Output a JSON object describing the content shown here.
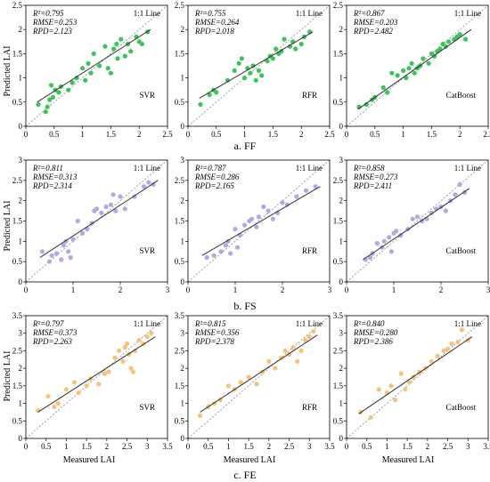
{
  "figure": {
    "rows": [
      {
        "caption": "a. FF",
        "ylabel": "Predicted LAI",
        "xlabel": ""
      },
      {
        "caption": "b. FS",
        "ylabel": "Predicted LAI",
        "xlabel": ""
      },
      {
        "caption": "c. FE",
        "ylabel": "Predicted LAI",
        "xlabel": "Measured LAI"
      }
    ],
    "colors": {
      "FF": "#3cc35a",
      "FS": "#b5a7e6",
      "FE": "#f7c27e",
      "fit": "#333333",
      "oneone": "#888888"
    }
  },
  "chart_data": [
    {
      "type": "scatter",
      "row": "FF",
      "model": "SVR",
      "legend": "1:1 Line",
      "stats": [
        "R²=0.795",
        "RMSE=0.253",
        "RPD=2.123"
      ],
      "xlim": [
        0,
        2.5
      ],
      "ylim": [
        0,
        2.5
      ],
      "xticks": [
        0,
        0.5,
        1,
        1.5,
        2,
        2.5
      ],
      "yticks": [
        0,
        0.5,
        1,
        1.5,
        2,
        2.5
      ],
      "xtick_labels": [
        "0",
        "0.5",
        "1",
        "1.5",
        "2",
        "2.5"
      ],
      "ytick_labels": [
        "0",
        "0.5",
        "1",
        "1.5",
        "2",
        "2.5"
      ],
      "fit": [
        [
          0.2,
          0.5
        ],
        [
          2.2,
          2.0
        ]
      ],
      "x": [
        0.22,
        0.35,
        0.38,
        0.42,
        0.45,
        0.48,
        0.52,
        0.58,
        0.62,
        0.75,
        0.82,
        0.9,
        1.0,
        1.05,
        1.1,
        1.15,
        1.2,
        1.3,
        1.4,
        1.45,
        1.5,
        1.55,
        1.6,
        1.62,
        1.68,
        1.75,
        1.8,
        1.85,
        1.95,
        2.0,
        2.05,
        2.15
      ],
      "y": [
        0.45,
        0.3,
        0.4,
        0.55,
        0.85,
        0.6,
        0.75,
        0.7,
        0.82,
        0.75,
        0.9,
        1.0,
        1.2,
        0.95,
        1.3,
        1.1,
        1.5,
        1.25,
        1.65,
        1.2,
        1.1,
        1.6,
        1.7,
        1.4,
        1.8,
        1.45,
        1.7,
        1.55,
        1.85,
        1.75,
        1.7,
        1.95
      ]
    },
    {
      "type": "scatter",
      "row": "FF",
      "model": "RFR",
      "legend": "1:1 Line",
      "stats": [
        "R²=0.755",
        "RMSE=0.264",
        "RPD=2.018"
      ],
      "xlim": [
        0,
        2.5
      ],
      "ylim": [
        0,
        2.5
      ],
      "xticks": [
        0,
        0.5,
        1,
        1.5,
        2,
        2.5
      ],
      "yticks": [
        0,
        0.5,
        1,
        1.5,
        2,
        2.5
      ],
      "xtick_labels": [
        "0",
        "0.5",
        "1",
        "1.5",
        "2",
        "2.5"
      ],
      "ytick_labels": [
        "0",
        "0.5",
        "1",
        "1.5",
        "2",
        "2.5"
      ],
      "fit": [
        [
          0.2,
          0.58
        ],
        [
          2.2,
          1.95
        ]
      ],
      "x": [
        0.22,
        0.38,
        0.45,
        0.5,
        0.7,
        0.82,
        0.9,
        0.95,
        1.0,
        1.05,
        1.1,
        1.15,
        1.2,
        1.25,
        1.3,
        1.4,
        1.45,
        1.5,
        1.55,
        1.6,
        1.65,
        1.7,
        1.8,
        1.85,
        1.9,
        2.0,
        2.05,
        2.15
      ],
      "y": [
        0.45,
        0.65,
        0.75,
        0.7,
        0.95,
        1.15,
        1.3,
        1.4,
        1.0,
        1.2,
        1.1,
        1.25,
        0.95,
        1.15,
        1.05,
        1.35,
        1.45,
        1.4,
        1.6,
        1.5,
        1.55,
        1.8,
        1.65,
        1.75,
        1.6,
        1.7,
        1.85,
        1.95
      ]
    },
    {
      "type": "scatter",
      "row": "FF",
      "model": "CatBoost",
      "legend": "1:1 Line",
      "stats": [
        "R²=0.867",
        "RMSE=0.203",
        "RPD=2.482"
      ],
      "xlim": [
        0,
        2.5
      ],
      "ylim": [
        0,
        2.5
      ],
      "xticks": [
        0,
        0.5,
        1,
        1.5,
        2,
        2.5
      ],
      "yticks": [
        0,
        0.5,
        1,
        1.5,
        2,
        2.5
      ],
      "xtick_labels": [
        "0",
        "0.5",
        "1",
        "1.5",
        "2",
        "2.5"
      ],
      "ytick_labels": [
        "0",
        "0.5",
        "1",
        "1.5",
        "2",
        "2.5"
      ],
      "fit": [
        [
          0.2,
          0.35
        ],
        [
          2.2,
          2.0
        ]
      ],
      "x": [
        0.22,
        0.35,
        0.45,
        0.5,
        0.65,
        0.72,
        0.8,
        0.9,
        1.0,
        1.05,
        1.1,
        1.15,
        1.2,
        1.25,
        1.3,
        1.35,
        1.45,
        1.5,
        1.55,
        1.6,
        1.65,
        1.7,
        1.75,
        1.8,
        1.9,
        1.95,
        2.0,
        2.1
      ],
      "y": [
        0.4,
        0.45,
        0.55,
        0.6,
        0.8,
        0.7,
        1.1,
        1.05,
        1.15,
        1.0,
        1.2,
        1.3,
        1.1,
        1.2,
        1.25,
        1.4,
        1.3,
        1.5,
        1.45,
        1.55,
        1.6,
        1.7,
        1.65,
        1.75,
        1.8,
        1.85,
        1.9,
        1.8
      ]
    },
    {
      "type": "scatter",
      "row": "FS",
      "model": "SVR",
      "legend": "1:1 Line",
      "stats": [
        "R²=0.811",
        "RMSE=0.313",
        "RPD=2.314"
      ],
      "xlim": [
        0,
        3
      ],
      "ylim": [
        0,
        3
      ],
      "xticks": [
        0,
        1,
        2,
        3
      ],
      "yticks": [
        0,
        0.5,
        1,
        1.5,
        2,
        2.5,
        3
      ],
      "xtick_labels": [
        "0",
        "1",
        "2",
        "3"
      ],
      "ytick_labels": [
        "0",
        "0.5",
        "1",
        "1.5",
        "2",
        "2.5",
        "3"
      ],
      "fit": [
        [
          0.3,
          0.6
        ],
        [
          2.8,
          2.5
        ]
      ],
      "x": [
        0.35,
        0.5,
        0.55,
        0.65,
        0.75,
        0.8,
        0.85,
        0.9,
        0.95,
        1.0,
        1.1,
        1.2,
        1.3,
        1.4,
        1.45,
        1.5,
        1.6,
        1.7,
        1.8,
        1.85,
        1.9,
        2.0,
        2.1,
        2.3,
        2.5,
        2.6,
        2.7
      ],
      "y": [
        0.75,
        0.5,
        0.65,
        0.7,
        0.55,
        0.9,
        1.0,
        0.75,
        0.6,
        1.05,
        1.5,
        1.2,
        1.3,
        1.45,
        1.75,
        1.8,
        1.7,
        1.85,
        1.9,
        2.15,
        1.75,
        2.1,
        1.8,
        2.1,
        2.35,
        2.45,
        2.4
      ]
    },
    {
      "type": "scatter",
      "row": "FS",
      "model": "RFR",
      "legend": "1:1 Line",
      "stats": [
        "R²=0.787",
        "RMSE=0.286",
        "RPD=2.165"
      ],
      "xlim": [
        0,
        3
      ],
      "ylim": [
        0,
        3
      ],
      "xticks": [
        0,
        1,
        2,
        3
      ],
      "yticks": [
        0,
        0.5,
        1,
        1.5,
        2,
        2.5,
        3
      ],
      "xtick_labels": [
        "0",
        "1",
        "2",
        "3"
      ],
      "ytick_labels": [
        "0",
        "0.5",
        "1",
        "1.5",
        "2",
        "2.5",
        "3"
      ],
      "fit": [
        [
          0.3,
          0.65
        ],
        [
          2.8,
          2.35
        ]
      ],
      "x": [
        0.4,
        0.55,
        0.7,
        0.8,
        0.85,
        0.9,
        1.0,
        1.05,
        1.1,
        1.2,
        1.3,
        1.35,
        1.45,
        1.5,
        1.6,
        1.7,
        1.8,
        1.9,
        2.0,
        2.1,
        2.3,
        2.5,
        2.7
      ],
      "y": [
        0.6,
        0.65,
        0.75,
        0.9,
        1.0,
        0.7,
        1.3,
        0.85,
        1.15,
        1.4,
        1.5,
        1.55,
        1.35,
        1.6,
        1.85,
        1.75,
        1.55,
        1.7,
        1.95,
        1.9,
        2.1,
        2.25,
        2.35
      ]
    },
    {
      "type": "scatter",
      "row": "FS",
      "model": "CatBoost",
      "legend": "1:1 Line",
      "stats": [
        "R²=0.858",
        "RMSE=0.273",
        "RPD=2.411"
      ],
      "xlim": [
        0,
        3
      ],
      "ylim": [
        0,
        3
      ],
      "xticks": [
        0,
        1,
        2,
        3
      ],
      "yticks": [
        0,
        0.5,
        1,
        1.5,
        2,
        2.5,
        3
      ],
      "xtick_labels": [
        "0",
        "1",
        "2",
        "3"
      ],
      "ytick_labels": [
        "0",
        "0.5",
        "1",
        "1.5",
        "2",
        "2.5",
        "3"
      ],
      "fit": [
        [
          0.35,
          0.55
        ],
        [
          2.6,
          2.3
        ]
      ],
      "x": [
        0.4,
        0.5,
        0.55,
        0.65,
        0.75,
        0.8,
        0.9,
        0.95,
        1.0,
        1.05,
        1.15,
        1.3,
        1.4,
        1.5,
        1.6,
        1.7,
        1.8,
        1.9,
        2.0,
        2.1,
        2.2,
        2.3,
        2.4,
        2.5
      ],
      "y": [
        0.55,
        0.6,
        0.7,
        0.95,
        0.85,
        1.0,
        1.1,
        0.75,
        1.2,
        1.25,
        1.15,
        1.3,
        1.55,
        1.6,
        1.5,
        1.55,
        1.7,
        1.8,
        1.85,
        1.75,
        2.0,
        2.15,
        2.4,
        2.2
      ]
    },
    {
      "type": "scatter",
      "row": "FE",
      "model": "SVR",
      "legend": "1:1 Line",
      "stats": [
        "R²=0.797",
        "RMSE=0.373",
        "RPD=2.263"
      ],
      "xlim": [
        0,
        3.5
      ],
      "ylim": [
        0,
        3.5
      ],
      "xticks": [
        0,
        0.5,
        1,
        1.5,
        2,
        2.5,
        3,
        3.5
      ],
      "yticks": [
        0,
        0.5,
        1,
        1.5,
        2,
        2.5,
        3,
        3.5
      ],
      "xtick_labels": [
        "0",
        "0.5",
        "1",
        "1.5",
        "2",
        "2.5",
        "3",
        "3.5"
      ],
      "ytick_labels": [
        "0",
        "0.5",
        "1",
        "1.5",
        "2",
        "2.5",
        "3",
        "3.5"
      ],
      "fit": [
        [
          0.3,
          0.75
        ],
        [
          3.2,
          2.9
        ]
      ],
      "x": [
        0.3,
        0.55,
        0.7,
        0.8,
        1.0,
        1.2,
        1.3,
        1.5,
        1.6,
        1.8,
        1.95,
        2.05,
        2.2,
        2.3,
        2.4,
        2.45,
        2.5,
        2.55,
        2.6,
        2.65,
        2.7,
        2.8,
        2.9,
        3.0,
        3.1
      ],
      "y": [
        0.8,
        1.2,
        0.9,
        1.0,
        1.4,
        1.6,
        1.3,
        1.5,
        1.7,
        1.55,
        1.85,
        1.9,
        2.3,
        2.5,
        2.2,
        2.6,
        2.7,
        2.4,
        2.0,
        1.9,
        2.5,
        2.8,
        2.7,
        2.9,
        3.0
      ]
    },
    {
      "type": "scatter",
      "row": "FE",
      "model": "RFR",
      "legend": "1:1 Line",
      "stats": [
        "R²=0.815",
        "RMSE=0.356",
        "RPD=2.378"
      ],
      "xlim": [
        0,
        3.5
      ],
      "ylim": [
        0,
        3.5
      ],
      "xticks": [
        0,
        0.5,
        1,
        1.5,
        2,
        2.5,
        3,
        3.5
      ],
      "yticks": [
        0,
        0.5,
        1,
        1.5,
        2,
        2.5,
        3,
        3.5
      ],
      "xtick_labels": [
        "0",
        "0.5",
        "1",
        "1.5",
        "2",
        "2.5",
        "3",
        "3.5"
      ],
      "ytick_labels": [
        "0",
        "0.5",
        "1",
        "1.5",
        "2",
        "2.5",
        "3",
        "3.5"
      ],
      "fit": [
        [
          0.3,
          0.75
        ],
        [
          3.2,
          2.95
        ]
      ],
      "x": [
        0.3,
        0.5,
        0.65,
        0.8,
        1.0,
        1.15,
        1.3,
        1.5,
        1.7,
        1.85,
        2.0,
        2.15,
        2.3,
        2.4,
        2.5,
        2.6,
        2.7,
        2.8,
        2.9,
        3.0,
        3.1
      ],
      "y": [
        0.65,
        0.9,
        1.0,
        1.1,
        1.5,
        1.4,
        1.6,
        1.75,
        1.55,
        1.9,
        2.2,
        2.0,
        2.3,
        2.5,
        2.4,
        2.6,
        2.2,
        2.5,
        2.8,
        2.9,
        3.05
      ]
    },
    {
      "type": "scatter",
      "row": "FE",
      "model": "CatBoost",
      "legend": "1:1 Line",
      "stats": [
        "R²=0.840",
        "RMSE=0.280",
        "RPD=2.386"
      ],
      "xlim": [
        0,
        3.5
      ],
      "ylim": [
        0,
        3.5
      ],
      "xticks": [
        0,
        0.5,
        1,
        1.5,
        2,
        2.5,
        3,
        3.5
      ],
      "yticks": [
        0,
        0.5,
        1,
        1.5,
        2,
        2.5,
        3,
        3.5
      ],
      "xtick_labels": [
        "0",
        "0.5",
        "1",
        "1.5",
        "2",
        "2.5",
        "3",
        "3.5"
      ],
      "ytick_labels": [
        "0",
        "0.5",
        "1",
        "1.5",
        "2",
        "2.5",
        "3",
        "3.5"
      ],
      "fit": [
        [
          0.3,
          0.7
        ],
        [
          3.1,
          2.9
        ]
      ],
      "x": [
        0.35,
        0.6,
        0.8,
        1.0,
        1.1,
        1.2,
        1.35,
        1.45,
        1.55,
        1.65,
        1.8,
        1.95,
        2.1,
        2.25,
        2.4,
        2.5,
        2.6,
        2.75,
        2.85,
        3.0
      ],
      "y": [
        0.75,
        0.6,
        1.4,
        1.3,
        1.5,
        1.1,
        1.85,
        1.4,
        1.6,
        1.75,
        1.9,
        2.0,
        2.2,
        2.35,
        2.5,
        2.55,
        2.7,
        2.75,
        3.1,
        2.8
      ]
    }
  ]
}
